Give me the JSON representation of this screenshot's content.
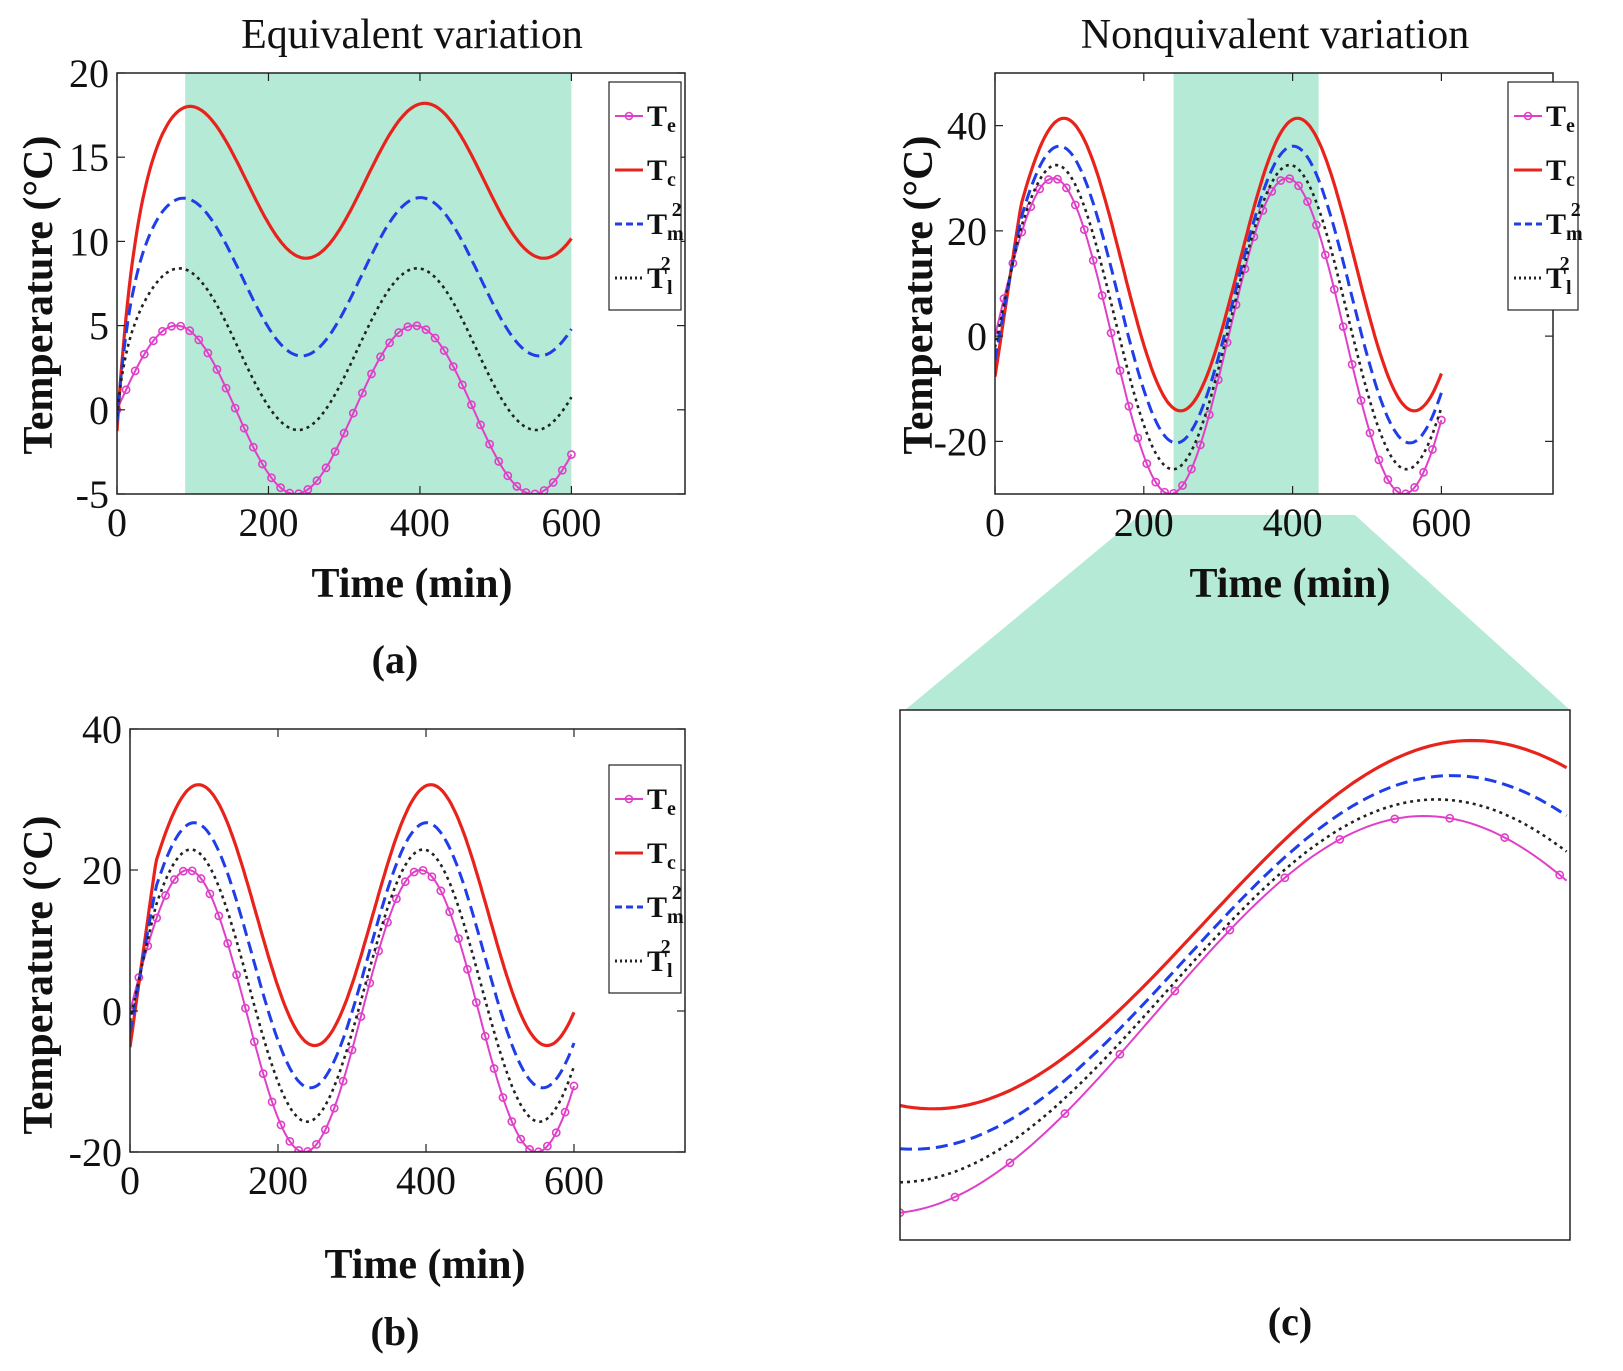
{
  "figure": {
    "caption_a": "(a)",
    "caption_b": "(b)",
    "caption_c": "(c)"
  },
  "legend": {
    "entries": [
      {
        "base": "T",
        "sub": "e",
        "sup": ""
      },
      {
        "base": "T",
        "sub": "c",
        "sup": ""
      },
      {
        "base": "T",
        "sub": "m",
        "sup": "2"
      },
      {
        "base": "T",
        "sub": "l",
        "sup": "2"
      }
    ]
  },
  "colors": {
    "Te": "#e040c8",
    "Tc": "#e8231c",
    "Tm2": "#1f3ee8",
    "Tl2": "#222222",
    "highlight": "#b4ead6"
  },
  "chart_data": [
    {
      "id": "a",
      "type": "line",
      "title": "Equivalent variation",
      "xlabel": "Time (min)",
      "ylabel": "Temperature (°C)",
      "xlim": [
        0,
        750
      ],
      "ylim": [
        -5,
        20
      ],
      "xticks": [
        0,
        200,
        400,
        600
      ],
      "yticks": [
        -5,
        0,
        5,
        10,
        15,
        20
      ],
      "highlight_x": [
        90,
        600
      ],
      "legend_position": "top-right",
      "series": [
        {
          "name": "Te",
          "style": "marker-line",
          "offset": 0,
          "amplitude": 5,
          "period": 314,
          "time_constant": 0
        },
        {
          "name": "Tc",
          "style": "solid",
          "offset": 13.6,
          "amplitude": 4.6,
          "period": 314,
          "time_constant": 22
        },
        {
          "name": "Tm2",
          "style": "dashed",
          "offset": 7.9,
          "amplitude": 4.7,
          "period": 314,
          "time_constant": 16
        },
        {
          "name": "Tl2",
          "style": "dotted",
          "offset": 3.6,
          "amplitude": 4.8,
          "period": 314,
          "time_constant": 10
        }
      ]
    },
    {
      "id": "b",
      "type": "line",
      "title": "",
      "xlabel": "Time (min)",
      "ylabel": "Temperature (°C)",
      "xlim": [
        0,
        750
      ],
      "ylim": [
        -20,
        40
      ],
      "xticks": [
        0,
        200,
        400,
        600
      ],
      "yticks": [
        -20,
        0,
        20,
        40
      ],
      "legend_position": "top-right",
      "series": [
        {
          "name": "Te",
          "style": "marker-line",
          "offset": 0,
          "amplitude": 20,
          "period": 314,
          "time_constant": 0
        },
        {
          "name": "Tc",
          "style": "solid",
          "offset": 13.6,
          "amplitude": 18.5,
          "period": 314,
          "time_constant": 0
        },
        {
          "name": "Tm2",
          "style": "dashed",
          "offset": 7.9,
          "amplitude": 18.8,
          "period": 314,
          "time_constant": 0
        },
        {
          "name": "Tl2",
          "style": "dotted",
          "offset": 3.6,
          "amplitude": 19.3,
          "period": 314,
          "time_constant": 0
        }
      ]
    },
    {
      "id": "c-main",
      "type": "line",
      "title": "Nonquivalent variation",
      "xlabel": "Time (min)",
      "ylabel": "Temperature (°C)",
      "xlim": [
        0,
        750
      ],
      "ylim": [
        -30,
        50
      ],
      "xticks": [
        0,
        200,
        400,
        600
      ],
      "yticks": [
        -20,
        0,
        20,
        40
      ],
      "highlight_x": [
        240,
        435
      ],
      "legend_position": "top-right",
      "series": [
        {
          "name": "Te",
          "style": "marker-line",
          "offset": 0,
          "amplitude": 30,
          "period": 314,
          "time_constant": 0
        },
        {
          "name": "Tc",
          "style": "solid",
          "offset": 13.6,
          "amplitude": 27.8,
          "period": 314,
          "time_constant": 0
        },
        {
          "name": "Tm2",
          "style": "dashed",
          "offset": 7.9,
          "amplitude": 28.2,
          "period": 314,
          "time_constant": 0
        },
        {
          "name": "Tl2",
          "style": "dotted",
          "offset": 3.6,
          "amplitude": 28.9,
          "period": 314,
          "time_constant": 0
        }
      ]
    },
    {
      "id": "c-zoom",
      "type": "line",
      "title": "",
      "xlim": [
        240,
        435
      ],
      "ylim": [
        -34,
        46
      ],
      "series_source": "c-main"
    }
  ]
}
